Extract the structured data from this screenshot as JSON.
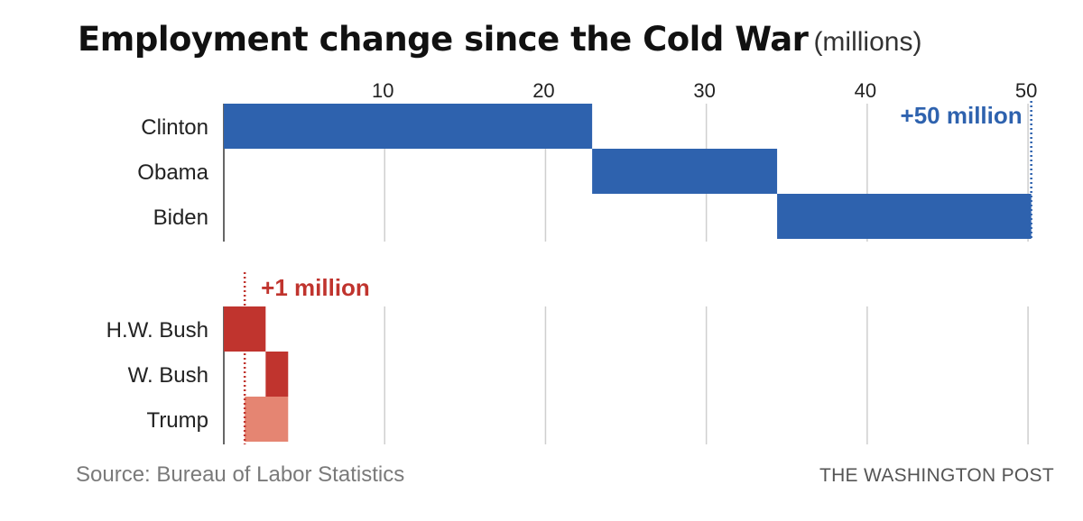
{
  "title": "Employment change since the Cold War",
  "subtitle": "(millions)",
  "source": "Source: Bureau of Labor Statistics",
  "brand": "THE WASHINGTON POST",
  "colors": {
    "democrat": "#2e62ae",
    "republican": "#c0342e",
    "republican_light": "#e58572",
    "grid": "#cfcfcf",
    "axis": "#333333"
  },
  "chart_data": {
    "type": "bar",
    "xticks": [
      10,
      20,
      30,
      40,
      50
    ],
    "xlim": [
      0,
      50.5
    ],
    "panels": [
      {
        "rows": [
          {
            "label": "Clinton",
            "start": 0,
            "end": 22.9,
            "color": "democrat"
          },
          {
            "label": "Obama",
            "start": 22.9,
            "end": 34.4,
            "color": "democrat"
          },
          {
            "label": "Biden",
            "start": 34.4,
            "end": 50.2,
            "color": "democrat"
          }
        ],
        "marker": {
          "value": 50.2,
          "label": "+50 million",
          "color": "democrat"
        }
      },
      {
        "rows": [
          {
            "label": "H.W. Bush",
            "start": 0,
            "end": 2.6,
            "color": "republican"
          },
          {
            "label": "W. Bush",
            "start": 2.6,
            "end": 4.0,
            "color": "republican"
          },
          {
            "label": "Trump",
            "start": 1.3,
            "end": 4.0,
            "color": "republican_light"
          }
        ],
        "marker": {
          "value": 1.3,
          "label": "+1 million",
          "color": "republican"
        }
      }
    ]
  }
}
